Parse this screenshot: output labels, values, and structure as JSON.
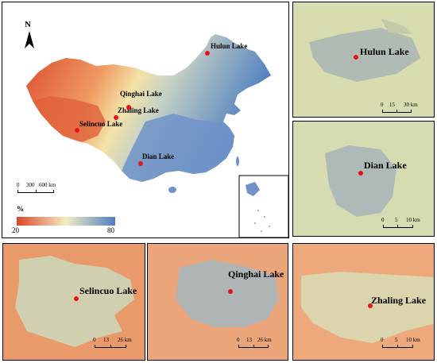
{
  "main_map": {
    "north_label": "N",
    "scale_ticks": [
      "0",
      "300",
      "600 km"
    ],
    "legend": {
      "unit": "%",
      "min_label": "20",
      "max_label": "80",
      "color_low": "#d9472b",
      "color_mid": "#f3ecc3",
      "color_high": "#4f7fbf"
    },
    "lakes": [
      {
        "name": "Hulun Lake"
      },
      {
        "name": "Qinghai Lake"
      },
      {
        "name": "Zhaling Lake"
      },
      {
        "name": "Selincuo Lake"
      },
      {
        "name": "Dian Lake"
      }
    ]
  },
  "insets": {
    "hulun": {
      "title": "Hulun Lake",
      "scale_ticks": [
        "0",
        "15",
        "30 km"
      ]
    },
    "dian": {
      "title": "Dian Lake",
      "scale_ticks": [
        "0",
        "5",
        "10 km"
      ]
    },
    "selincuo": {
      "title": "Selincuo Lake",
      "scale_ticks": [
        "0",
        "13",
        "26 km"
      ]
    },
    "qinghai": {
      "title": "Qinghai Lake",
      "scale_ticks": [
        "0",
        "13",
        "26 km"
      ]
    },
    "zhaling": {
      "title": "Zhaling Lake",
      "scale_ticks": [
        "0",
        "5",
        "10 km"
      ]
    }
  },
  "colors": {
    "marker": "#e8141c"
  }
}
